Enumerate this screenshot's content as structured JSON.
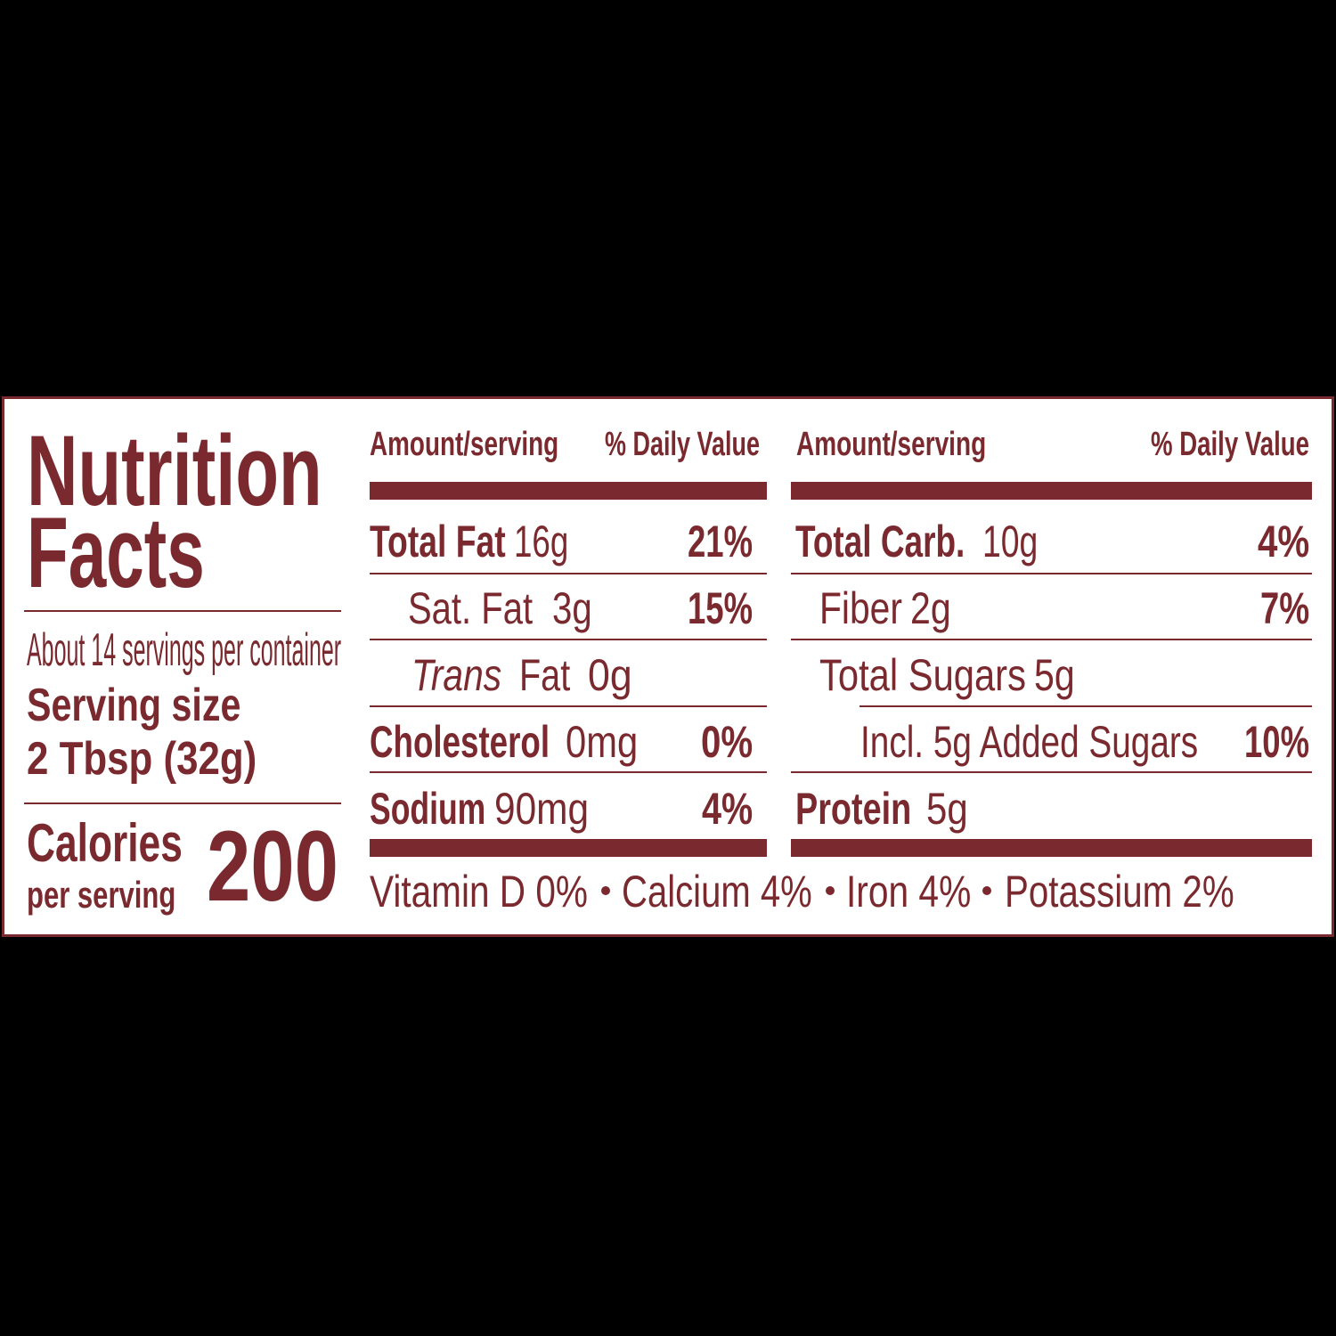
{
  "title": {
    "line1": "Nutrition",
    "line2": "Facts"
  },
  "servings_per_container": "About 14 servings per container",
  "serving_size": {
    "label": "Serving size",
    "value": "2 Tbsp (32g)"
  },
  "calories": {
    "label": "Calories",
    "sublabel": "per serving",
    "value": "200"
  },
  "columns": [
    {
      "header": {
        "amount": "Amount/serving",
        "daily_value": "% Daily Value"
      },
      "rows": [
        {
          "name": "Total Fat",
          "amount": "16g",
          "daily_value": "21%"
        },
        {
          "name": "Sat. Fat",
          "amount": "3g",
          "daily_value": "15%"
        },
        {
          "name_italic": "Trans",
          "name": "Fat",
          "amount": "0g"
        },
        {
          "name": "Cholesterol",
          "amount": "0mg",
          "daily_value": "0%"
        },
        {
          "name": "Sodium",
          "amount": "90mg",
          "daily_value": "4%"
        }
      ]
    },
    {
      "header": {
        "amount": "Amount/serving",
        "daily_value": "% Daily Value"
      },
      "rows": [
        {
          "name": "Total Carb.",
          "amount": "10g",
          "daily_value": "4%"
        },
        {
          "name": "Fiber",
          "amount": "2g",
          "daily_value": "7%"
        },
        {
          "name": "Total Sugars",
          "amount": "5g"
        },
        {
          "name": "Incl. 5g Added Sugars",
          "daily_value": "10%"
        },
        {
          "name": "Protein",
          "amount": "5g"
        }
      ]
    }
  ],
  "micronutrients": [
    "Vitamin D 0%",
    "Calcium 4%",
    "Iron 4%",
    "Potassium 2%"
  ]
}
